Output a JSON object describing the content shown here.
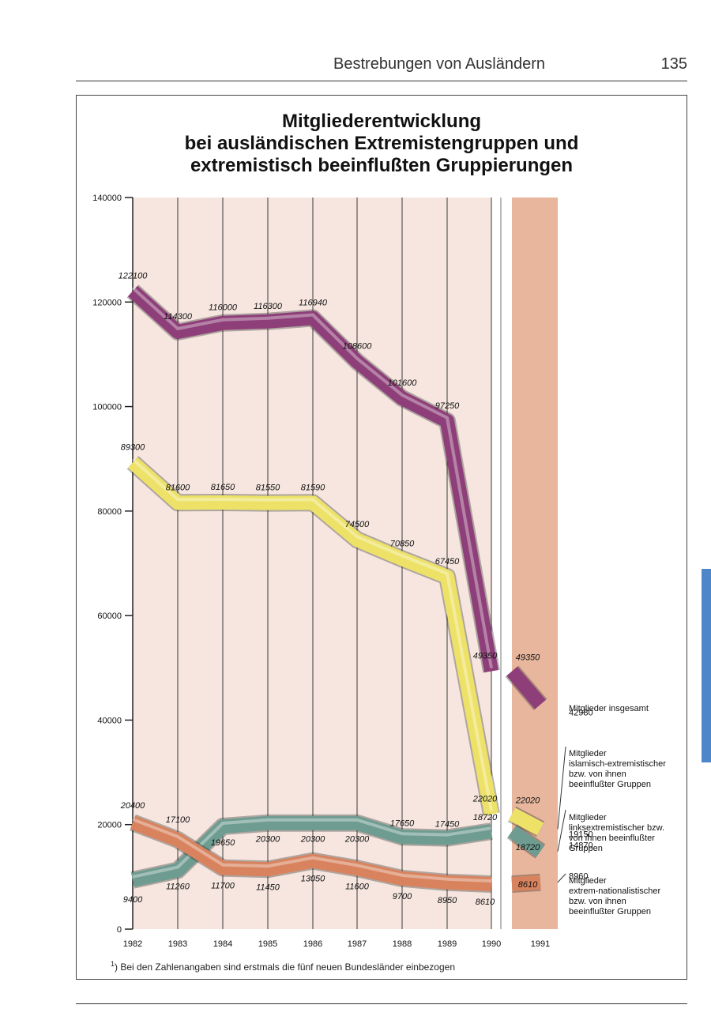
{
  "page": {
    "running_head": "Bestrebungen von Ausländern",
    "page_number": "135",
    "footnote_marker": "1",
    "footnote": ") Bei den Zahlenangaben sind erstmals die fünf neuen Bundesländer einbezogen"
  },
  "chart_data": {
    "type": "line",
    "title_lines": [
      "Mitgliederentwicklung",
      "bei ausländischen Extremistengruppen und",
      "extremistisch beeinflußten Gruppierungen"
    ],
    "xlabel": "",
    "ylabel": "",
    "categories": [
      "1982",
      "1983",
      "1984",
      "1985",
      "1986",
      "1987",
      "1988",
      "1989",
      "1990",
      "1991"
    ],
    "y_ticks": [
      0,
      20000,
      40000,
      60000,
      80000,
      100000,
      120000,
      140000
    ],
    "y_tick_labels": [
      "0",
      "20000",
      "40000",
      "60000",
      "80000",
      "100000",
      "120000",
      "140000"
    ],
    "ylim": [
      0,
      140000
    ],
    "grid": "vertical",
    "highlighted_category": "1991",
    "series": [
      {
        "name": "Mitglieder insgesamt",
        "color": "#8e3f79",
        "values": [
          122100,
          114300,
          116000,
          116300,
          116940,
          108600,
          101600,
          97250,
          49350,
          42980
        ],
        "point_labels": [
          "122100",
          "114300",
          "116000",
          "116300",
          "116940",
          "108600",
          "101600",
          "97250",
          "49350",
          ""
        ],
        "break_label": "49350",
        "end_label": "42980"
      },
      {
        "name": "Mitglieder islamisch-extremistischer bzw. von ihnen beeinflußter Gruppen",
        "color": "#ede267",
        "values": [
          89300,
          81600,
          81650,
          81550,
          81590,
          74500,
          70850,
          67450,
          22020,
          19150
        ],
        "point_labels": [
          "89300",
          "81600",
          "81650",
          "81550",
          "81590",
          "74500",
          "70850",
          "67450",
          "22020",
          ""
        ],
        "break_label": "22020",
        "end_label": "19150"
      },
      {
        "name": "Mitglieder linksextremistischer bzw. von ihnen beeinflußter Gruppen",
        "color": "#6f9c91",
        "values": [
          9400,
          11260,
          19650,
          20300,
          20300,
          20300,
          17650,
          17450,
          18720,
          14870
        ],
        "point_labels": [
          "9400",
          "11260",
          "19650",
          "20300",
          "20300",
          "20300",
          "17650",
          "17450",
          "18720",
          ""
        ],
        "break_label": "18720",
        "end_label": "14870"
      },
      {
        "name": "Mitglieder extrem-nationalistischer bzw. von ihnen beeinflußter Gruppen",
        "color": "#d8835e",
        "values": [
          20400,
          17100,
          11700,
          11450,
          13050,
          11600,
          9700,
          8950,
          8610,
          8960
        ],
        "point_labels": [
          "20400",
          "17100",
          "11700",
          "11450",
          "13050",
          "11600",
          "9700",
          "8950",
          "8610",
          ""
        ],
        "break_label": "8610",
        "end_label": "8960"
      }
    ]
  }
}
